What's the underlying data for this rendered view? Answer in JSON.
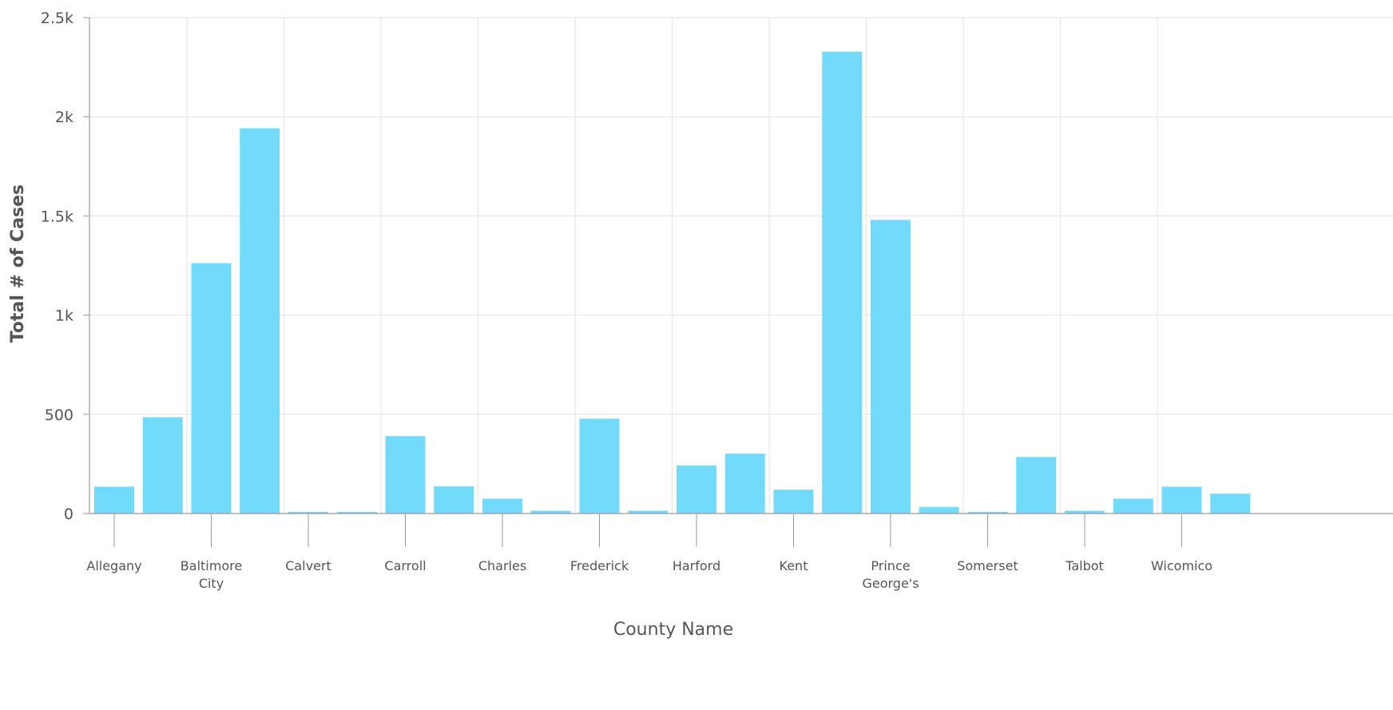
{
  "chart_data": {
    "type": "bar",
    "title": "",
    "xlabel": "County Name",
    "ylabel": "Total # of Cases",
    "ylim": [
      0,
      2500
    ],
    "yticks": [
      {
        "value": 0,
        "label": "0"
      },
      {
        "value": 500,
        "label": "500"
      },
      {
        "value": 1000,
        "label": "1k"
      },
      {
        "value": 1500,
        "label": "1.5k"
      },
      {
        "value": 2000,
        "label": "2k"
      },
      {
        "value": 2500,
        "label": "2.5k"
      }
    ],
    "grid": true,
    "legend": "none",
    "bar_color": "#72dbfb",
    "categories": [
      "Allegany",
      "",
      "Baltimore City",
      "",
      "Calvert",
      "",
      "Carroll",
      "",
      "Charles",
      "",
      "Frederick",
      "",
      "Harford",
      "",
      "Kent",
      "",
      "Prince George's",
      "",
      "Somerset",
      "",
      "Talbot",
      "",
      "Wicomico",
      ""
    ],
    "values": [
      135,
      485,
      1262,
      1942,
      5,
      5,
      390,
      137,
      75,
      14,
      478,
      14,
      242,
      302,
      120,
      2328,
      1480,
      33,
      5,
      285,
      14,
      75,
      135,
      100
    ],
    "x_tick_labels": [
      {
        "index": 0,
        "lines": [
          "Allegany"
        ]
      },
      {
        "index": 2,
        "lines": [
          "Baltimore",
          "City"
        ]
      },
      {
        "index": 4,
        "lines": [
          "Calvert"
        ]
      },
      {
        "index": 6,
        "lines": [
          "Carroll"
        ]
      },
      {
        "index": 8,
        "lines": [
          "Charles"
        ]
      },
      {
        "index": 10,
        "lines": [
          "Frederick"
        ]
      },
      {
        "index": 12,
        "lines": [
          "Harford"
        ]
      },
      {
        "index": 14,
        "lines": [
          "Kent"
        ]
      },
      {
        "index": 16,
        "lines": [
          "Prince",
          "George's"
        ]
      },
      {
        "index": 18,
        "lines": [
          "Somerset"
        ]
      },
      {
        "index": 20,
        "lines": [
          "Talbot"
        ]
      },
      {
        "index": 22,
        "lines": [
          "Wicomico"
        ]
      }
    ]
  }
}
